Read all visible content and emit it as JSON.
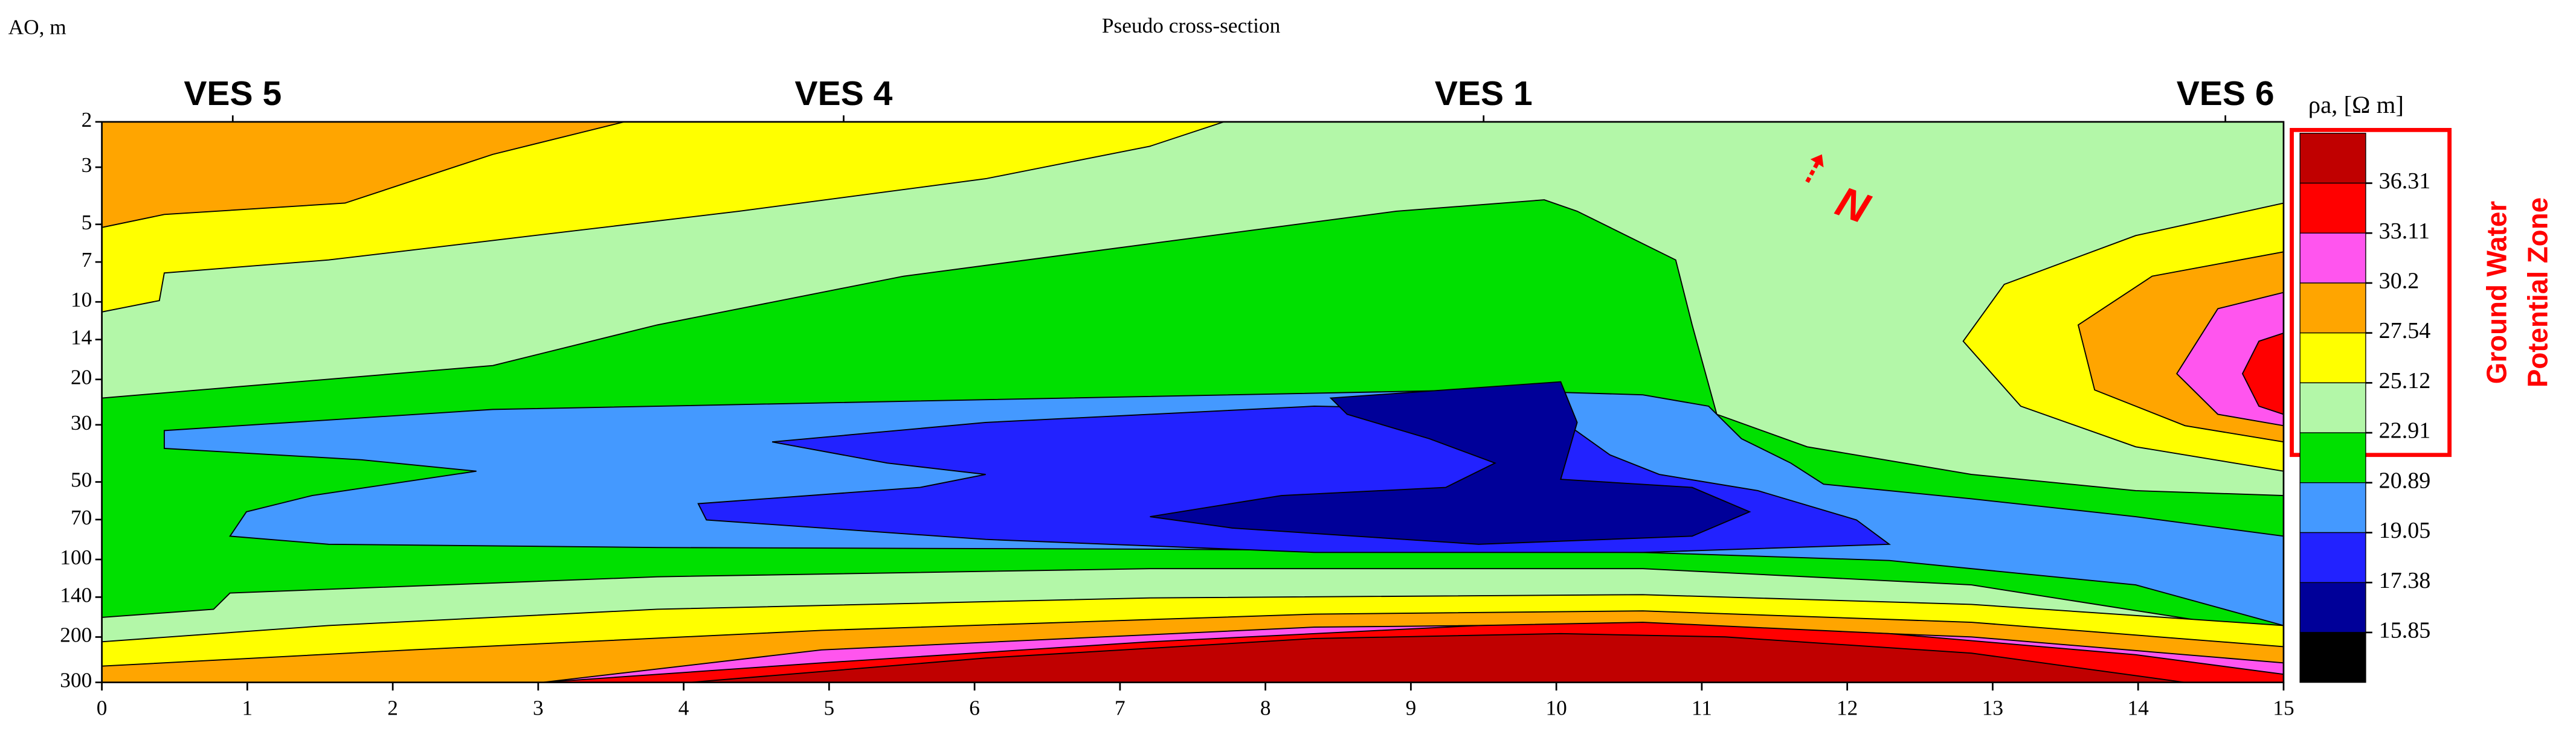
{
  "chart_data": {
    "type": "contour",
    "title": "Pseudo cross-section",
    "y_label": "AO, m",
    "xlim": [
      0,
      15
    ],
    "xticks": [
      0,
      1,
      2,
      3,
      4,
      5,
      6,
      7,
      8,
      9,
      10,
      11,
      12,
      13,
      14,
      15
    ],
    "ylim": [
      2,
      300
    ],
    "yticks": [
      2,
      3,
      5,
      7,
      10,
      14,
      20,
      30,
      50,
      70,
      100,
      140,
      200,
      300
    ],
    "y_scale": "log",
    "y_inverted": true,
    "color_bar": {
      "title": "ρa, [Ω m]",
      "levels": [
        36.31,
        33.11,
        30.2,
        27.54,
        25.12,
        22.91,
        20.89,
        19.05,
        17.38,
        15.85
      ],
      "colors": [
        "#c00000",
        "#ff0000",
        "#ff55ee",
        "#ffa500",
        "#ffff00",
        "#b3f7a8",
        "#00e000",
        "#4499ff",
        "#2222ff",
        "#000099",
        "#000000"
      ]
    },
    "stations": [
      {
        "label": "VES 5",
        "x": 0.9
      },
      {
        "label": "VES 4",
        "x": 5.1
      },
      {
        "label": "VES 1",
        "x": 9.5
      },
      {
        "label": "VES 6",
        "x": 14.6
      }
    ],
    "north_label": "N",
    "zone_label": [
      "Ground Water",
      "Potential Zone"
    ]
  }
}
